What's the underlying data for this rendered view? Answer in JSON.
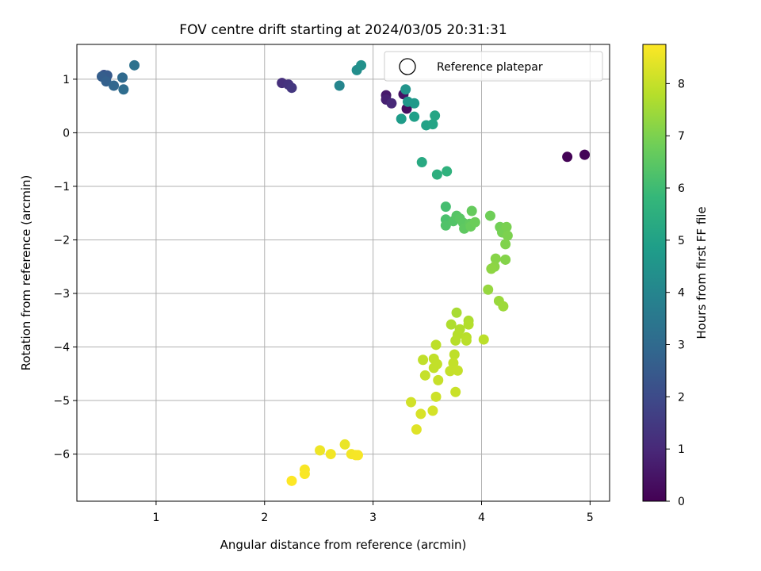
{
  "chart_data": {
    "type": "scatter",
    "title": "FOV centre drift starting at 2024/03/05 20:31:31",
    "xlabel": "Angular distance from reference (arcmin)",
    "ylabel": "Rotation from reference (arcmin)",
    "xlim": [
      0.27,
      5.18
    ],
    "ylim": [
      -6.88,
      1.65
    ],
    "xticks": [
      1,
      2,
      3,
      4,
      5
    ],
    "yticks": [
      1,
      0,
      -1,
      -2,
      -3,
      -4,
      -5,
      -6
    ],
    "ytick_labels": [
      "1",
      "0",
      "−1",
      "−2",
      "−3",
      "−4",
      "−5",
      "−6"
    ],
    "grid": true,
    "legend": {
      "placement": "top-right",
      "entries": [
        {
          "label": "Reference platepar",
          "marker": "hollow-circle"
        }
      ]
    },
    "colorbar": {
      "label": "Hours from first FF file",
      "colormap": "viridis",
      "range": [
        0,
        8.75
      ],
      "ticks": [
        0,
        1,
        2,
        3,
        4,
        5,
        6,
        7,
        8
      ],
      "colors": [
        "#440154",
        "#482878",
        "#3e4989",
        "#31688e",
        "#26828e",
        "#1f9e89",
        "#35b779",
        "#6ece58",
        "#b5de2b",
        "#fde725"
      ]
    },
    "points": [
      {
        "x": 4.79,
        "y": -0.45,
        "c": 0.05
      },
      {
        "x": 4.95,
        "y": -0.41,
        "c": 0.1
      },
      {
        "x": 3.31,
        "y": 0.45,
        "c": 0.3
      },
      {
        "x": 3.28,
        "y": 0.72,
        "c": 0.45
      },
      {
        "x": 3.12,
        "y": 0.7,
        "c": 0.6
      },
      {
        "x": 3.12,
        "y": 0.62,
        "c": 0.8
      },
      {
        "x": 3.17,
        "y": 0.55,
        "c": 1.0
      },
      {
        "x": 2.16,
        "y": 0.93,
        "c": 1.2
      },
      {
        "x": 2.22,
        "y": 0.9,
        "c": 1.3
      },
      {
        "x": 2.25,
        "y": 0.84,
        "c": 1.4
      },
      {
        "x": 0.52,
        "y": 1.08,
        "c": 2.2
      },
      {
        "x": 0.55,
        "y": 1.07,
        "c": 2.5
      },
      {
        "x": 0.5,
        "y": 1.05,
        "c": 2.6
      },
      {
        "x": 0.54,
        "y": 0.96,
        "c": 2.7
      },
      {
        "x": 0.61,
        "y": 0.88,
        "c": 2.9
      },
      {
        "x": 0.69,
        "y": 1.03,
        "c": 3.0
      },
      {
        "x": 0.7,
        "y": 0.81,
        "c": 3.1
      },
      {
        "x": 0.8,
        "y": 1.26,
        "c": 3.3
      },
      {
        "x": 2.69,
        "y": 0.88,
        "c": 4.0
      },
      {
        "x": 2.85,
        "y": 1.17,
        "c": 4.3
      },
      {
        "x": 2.89,
        "y": 1.26,
        "c": 4.4
      },
      {
        "x": 3.3,
        "y": 0.81,
        "c": 4.5
      },
      {
        "x": 3.32,
        "y": 0.58,
        "c": 4.6
      },
      {
        "x": 3.38,
        "y": 0.55,
        "c": 4.7
      },
      {
        "x": 3.26,
        "y": 0.26,
        "c": 4.8
      },
      {
        "x": 3.38,
        "y": 0.3,
        "c": 4.9
      },
      {
        "x": 3.49,
        "y": 0.14,
        "c": 5.0
      },
      {
        "x": 3.55,
        "y": 0.16,
        "c": 5.1
      },
      {
        "x": 3.57,
        "y": 0.32,
        "c": 5.15
      },
      {
        "x": 3.45,
        "y": -0.55,
        "c": 5.3
      },
      {
        "x": 3.59,
        "y": -0.78,
        "c": 5.5
      },
      {
        "x": 3.68,
        "y": -0.72,
        "c": 5.6
      },
      {
        "x": 3.67,
        "y": -1.38,
        "c": 6.1
      },
      {
        "x": 3.67,
        "y": -1.62,
        "c": 6.2
      },
      {
        "x": 3.67,
        "y": -1.73,
        "c": 6.3
      },
      {
        "x": 3.74,
        "y": -1.65,
        "c": 6.35
      },
      {
        "x": 3.77,
        "y": -1.55,
        "c": 6.4
      },
      {
        "x": 3.8,
        "y": -1.6,
        "c": 6.45
      },
      {
        "x": 3.83,
        "y": -1.68,
        "c": 6.5
      },
      {
        "x": 3.84,
        "y": -1.79,
        "c": 6.55
      },
      {
        "x": 3.89,
        "y": -1.7,
        "c": 6.6
      },
      {
        "x": 3.91,
        "y": -1.46,
        "c": 6.65
      },
      {
        "x": 3.9,
        "y": -1.75,
        "c": 6.7
      },
      {
        "x": 3.94,
        "y": -1.67,
        "c": 6.75
      },
      {
        "x": 4.08,
        "y": -1.55,
        "c": 6.8
      },
      {
        "x": 4.17,
        "y": -1.76,
        "c": 6.85
      },
      {
        "x": 4.19,
        "y": -1.86,
        "c": 6.9
      },
      {
        "x": 4.23,
        "y": -1.76,
        "c": 6.95
      },
      {
        "x": 4.24,
        "y": -1.92,
        "c": 7.0
      },
      {
        "x": 4.22,
        "y": -2.08,
        "c": 7.05
      },
      {
        "x": 4.22,
        "y": -2.37,
        "c": 7.1
      },
      {
        "x": 4.13,
        "y": -2.35,
        "c": 7.15
      },
      {
        "x": 4.12,
        "y": -2.5,
        "c": 7.2
      },
      {
        "x": 4.09,
        "y": -2.54,
        "c": 7.25
      },
      {
        "x": 4.06,
        "y": -2.93,
        "c": 7.35
      },
      {
        "x": 4.16,
        "y": -3.14,
        "c": 7.4
      },
      {
        "x": 4.2,
        "y": -3.24,
        "c": 7.45
      },
      {
        "x": 3.77,
        "y": -3.36,
        "c": 7.6
      },
      {
        "x": 3.88,
        "y": -3.51,
        "c": 7.65
      },
      {
        "x": 3.72,
        "y": -3.58,
        "c": 7.7
      },
      {
        "x": 3.8,
        "y": -3.67,
        "c": 7.72
      },
      {
        "x": 3.88,
        "y": -3.58,
        "c": 7.75
      },
      {
        "x": 3.78,
        "y": -3.77,
        "c": 7.78
      },
      {
        "x": 3.76,
        "y": -3.88,
        "c": 7.8
      },
      {
        "x": 3.86,
        "y": -3.82,
        "c": 7.82
      },
      {
        "x": 3.86,
        "y": -3.88,
        "c": 7.84
      },
      {
        "x": 4.02,
        "y": -3.86,
        "c": 7.86
      },
      {
        "x": 3.58,
        "y": -3.96,
        "c": 7.88
      },
      {
        "x": 3.75,
        "y": -4.14,
        "c": 7.9
      },
      {
        "x": 3.46,
        "y": -4.24,
        "c": 7.92
      },
      {
        "x": 3.56,
        "y": -4.22,
        "c": 7.94
      },
      {
        "x": 3.59,
        "y": -4.32,
        "c": 7.95
      },
      {
        "x": 3.56,
        "y": -4.39,
        "c": 7.96
      },
      {
        "x": 3.74,
        "y": -4.3,
        "c": 7.97
      },
      {
        "x": 3.71,
        "y": -4.45,
        "c": 7.98
      },
      {
        "x": 3.78,
        "y": -4.44,
        "c": 7.99
      },
      {
        "x": 3.48,
        "y": -4.53,
        "c": 8.0
      },
      {
        "x": 3.6,
        "y": -4.62,
        "c": 8.02
      },
      {
        "x": 3.76,
        "y": -4.84,
        "c": 8.05
      },
      {
        "x": 3.58,
        "y": -4.93,
        "c": 8.1
      },
      {
        "x": 3.35,
        "y": -5.03,
        "c": 8.15
      },
      {
        "x": 3.55,
        "y": -5.19,
        "c": 8.2
      },
      {
        "x": 3.44,
        "y": -5.25,
        "c": 8.25
      },
      {
        "x": 3.4,
        "y": -5.54,
        "c": 8.35
      },
      {
        "x": 2.74,
        "y": -5.82,
        "c": 8.5
      },
      {
        "x": 2.51,
        "y": -5.93,
        "c": 8.55
      },
      {
        "x": 2.61,
        "y": -6.0,
        "c": 8.6
      },
      {
        "x": 2.8,
        "y": -6.0,
        "c": 8.62
      },
      {
        "x": 2.84,
        "y": -6.02,
        "c": 8.64
      },
      {
        "x": 2.86,
        "y": -6.02,
        "c": 8.66
      },
      {
        "x": 2.37,
        "y": -6.29,
        "c": 8.68
      },
      {
        "x": 2.37,
        "y": -6.37,
        "c": 8.7
      },
      {
        "x": 2.25,
        "y": -6.5,
        "c": 8.75
      }
    ]
  }
}
